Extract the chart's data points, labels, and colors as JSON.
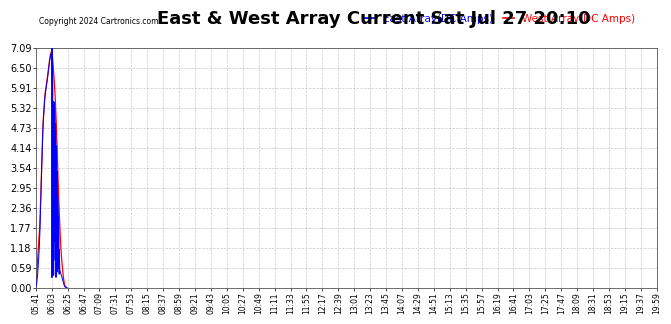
{
  "title": "East & West Array Current Sat Jul 27 20:10",
  "copyright": "Copyright 2024 Cartronics.com",
  "legend_east": "East Array(DC Amps)",
  "legend_west": "West Array(DC Amps)",
  "color_east": "blue",
  "color_west": "red",
  "yticks": [
    0.0,
    0.59,
    1.18,
    1.77,
    2.36,
    2.95,
    3.54,
    4.14,
    4.73,
    5.32,
    5.91,
    6.5,
    7.09
  ],
  "ylim": [
    0.0,
    7.09
  ],
  "background_color": "#ffffff",
  "grid_color": "#bbbbbb",
  "title_fontsize": 13,
  "tick_fontsize": 7,
  "time_labels": [
    "05:41",
    "06:03",
    "06:25",
    "06:47",
    "07:09",
    "07:31",
    "07:53",
    "08:15",
    "08:37",
    "08:59",
    "09:21",
    "09:43",
    "10:05",
    "10:27",
    "10:49",
    "11:11",
    "11:33",
    "11:55",
    "12:17",
    "12:39",
    "13:01",
    "13:23",
    "13:45",
    "14:07",
    "14:29",
    "14:51",
    "15:13",
    "15:35",
    "15:57",
    "16:19",
    "16:41",
    "17:03",
    "17:25",
    "17:47",
    "18:09",
    "18:31",
    "18:53",
    "19:15",
    "19:37",
    "19:59"
  ],
  "west_data": [
    0.05,
    0.35,
    0.75,
    1.1,
    1.45,
    1.85,
    2.5,
    3.3,
    4.1,
    4.8,
    5.2,
    5.55,
    5.8,
    5.95,
    6.1,
    6.3,
    6.5,
    6.7,
    6.85,
    6.95,
    7.0,
    6.8,
    6.5,
    6.2,
    5.8,
    5.3,
    4.7,
    4.0,
    3.2,
    2.5,
    1.9,
    1.4,
    1.0,
    0.7,
    0.45,
    0.25,
    0.1,
    0.05,
    0.02,
    0.01
  ],
  "east_data": [
    0.02,
    0.1,
    0.3,
    0.6,
    1.0,
    1.5,
    2.3,
    3.2,
    4.05,
    4.75,
    5.15,
    5.5,
    5.75,
    5.9,
    6.05,
    6.25,
    6.45,
    6.65,
    6.8,
    6.9,
    6.95,
    6.75,
    4.9,
    5.5,
    5.2,
    4.6,
    3.9,
    3.1,
    2.4,
    1.8,
    0.55,
    0.45,
    0.38,
    0.3,
    0.22,
    0.12,
    0.05,
    0.02,
    0.01,
    0.01
  ]
}
